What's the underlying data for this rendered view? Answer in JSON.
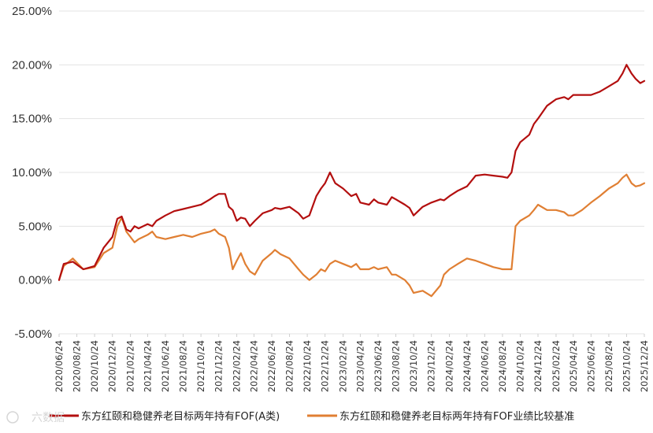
{
  "watermark": "六数据",
  "chart_data": {
    "type": "line",
    "ylim": [
      -0.05,
      0.25
    ],
    "yticks": [
      -0.05,
      0,
      0.05,
      0.1,
      0.15,
      0.2,
      0.25
    ],
    "ytick_labels": [
      "-5.00%",
      "0.00%",
      "5.00%",
      "10.00%",
      "15.00%",
      "20.00%",
      "25.00%"
    ],
    "xlim": [
      "2020-06-24",
      "2025-12-24"
    ],
    "xticks": [
      "2020-06-24",
      "2020-08-24",
      "2020-10-24",
      "2020-12-24",
      "2021-02-24",
      "2021-04-24",
      "2021-06-24",
      "2021-08-24",
      "2021-10-24",
      "2021-12-24",
      "2022-02-24",
      "2022-04-24",
      "2022-06-24",
      "2022-08-24",
      "2022-10-24",
      "2022-12-24",
      "2023-02-24",
      "2023-04-24",
      "2023-06-24",
      "2023-08-24",
      "2023-10-24",
      "2023-12-24",
      "2024-02-24",
      "2024-04-24",
      "2024-06-24",
      "2024-08-24",
      "2024-10-24",
      "2024-12-24",
      "2025-02-24",
      "2025-04-24",
      "2025-06-24",
      "2025-08-24",
      "2025-10-24",
      "2025-12-24"
    ],
    "xtick_labels": [
      "2020/06/24",
      "2020/08/24",
      "2020/10/24",
      "2020/12/24",
      "2021/02/24",
      "2021/04/24",
      "2021/06/24",
      "2021/08/24",
      "2021/10/24",
      "2021/12/24",
      "2022/02/24",
      "2022/04/24",
      "2022/06/24",
      "2022/08/24",
      "2022/10/24",
      "2022/12/24",
      "2023/02/24",
      "2023/04/24",
      "2023/06/24",
      "2023/08/24",
      "2023/10/24",
      "2023/12/24",
      "2024/02/24",
      "2024/04/24",
      "2024/06/24",
      "2024/08/24",
      "2024/10/24",
      "2024/12/24",
      "2025/02/24",
      "2025/04/24",
      "2025/06/24",
      "2025/08/24",
      "2025/10/24",
      "2025/12/24"
    ],
    "grid": true,
    "legend_position": "bottom",
    "series": [
      {
        "name": "东方红颐和稳健养老目标两年持有FOF(A类)",
        "color": "#b30f0f",
        "x": [
          "2020-06-24",
          "2020-07-10",
          "2020-08-10",
          "2020-09-15",
          "2020-10-24",
          "2020-11-24",
          "2020-12-24",
          "2021-01-10",
          "2021-01-25",
          "2021-02-10",
          "2021-02-24",
          "2021-03-10",
          "2021-03-24",
          "2021-04-24",
          "2021-05-10",
          "2021-05-24",
          "2021-06-24",
          "2021-07-24",
          "2021-08-24",
          "2021-09-24",
          "2021-10-24",
          "2021-11-24",
          "2021-12-10",
          "2021-12-24",
          "2022-01-15",
          "2022-01-28",
          "2022-02-10",
          "2022-02-24",
          "2022-03-10",
          "2022-03-25",
          "2022-04-10",
          "2022-04-27",
          "2022-05-24",
          "2022-06-24",
          "2022-07-05",
          "2022-07-24",
          "2022-08-24",
          "2022-09-24",
          "2022-10-10",
          "2022-10-31",
          "2022-11-24",
          "2022-12-10",
          "2022-12-24",
          "2023-01-10",
          "2023-01-28",
          "2023-02-24",
          "2023-03-24",
          "2023-04-10",
          "2023-04-24",
          "2023-05-24",
          "2023-06-10",
          "2023-06-24",
          "2023-07-24",
          "2023-08-10",
          "2023-08-24",
          "2023-09-24",
          "2023-10-10",
          "2023-10-24",
          "2023-11-24",
          "2023-12-24",
          "2024-01-24",
          "2024-02-05",
          "2024-02-24",
          "2024-03-24",
          "2024-04-24",
          "2024-05-24",
          "2024-06-24",
          "2024-07-24",
          "2024-08-24",
          "2024-09-10",
          "2024-09-24",
          "2024-10-08",
          "2024-10-24",
          "2024-11-24",
          "2024-12-10",
          "2024-12-24",
          "2025-01-24",
          "2025-02-24",
          "2025-03-24",
          "2025-04-07",
          "2025-04-24",
          "2025-05-24",
          "2025-06-24",
          "2025-07-24",
          "2025-08-24",
          "2025-09-24",
          "2025-10-10",
          "2025-10-24",
          "2025-11-10",
          "2025-11-24",
          "2025-12-10",
          "2025-12-24"
        ],
        "y": [
          0.0,
          0.015,
          0.017,
          0.01,
          0.013,
          0.03,
          0.04,
          0.057,
          0.059,
          0.047,
          0.045,
          0.05,
          0.048,
          0.052,
          0.05,
          0.055,
          0.06,
          0.064,
          0.066,
          0.068,
          0.07,
          0.075,
          0.078,
          0.08,
          0.08,
          0.068,
          0.065,
          0.055,
          0.058,
          0.057,
          0.05,
          0.055,
          0.062,
          0.065,
          0.067,
          0.066,
          0.068,
          0.062,
          0.057,
          0.06,
          0.078,
          0.085,
          0.09,
          0.1,
          0.09,
          0.085,
          0.078,
          0.08,
          0.072,
          0.07,
          0.075,
          0.072,
          0.07,
          0.077,
          0.075,
          0.07,
          0.067,
          0.06,
          0.068,
          0.072,
          0.075,
          0.074,
          0.078,
          0.083,
          0.087,
          0.097,
          0.098,
          0.097,
          0.096,
          0.095,
          0.1,
          0.12,
          0.128,
          0.135,
          0.145,
          0.15,
          0.162,
          0.168,
          0.17,
          0.168,
          0.172,
          0.172,
          0.172,
          0.175,
          0.18,
          0.185,
          0.192,
          0.2,
          0.192,
          0.187,
          0.183,
          0.185
        ]
      },
      {
        "name": "东方红颐和稳健养老目标两年持有FOF业绩比较基准",
        "color": "#e07f33",
        "x": [
          "2020-06-24",
          "2020-07-10",
          "2020-08-10",
          "2020-09-15",
          "2020-10-24",
          "2020-11-24",
          "2020-12-24",
          "2021-01-10",
          "2021-01-25",
          "2021-02-10",
          "2021-02-24",
          "2021-03-10",
          "2021-03-24",
          "2021-04-24",
          "2021-05-10",
          "2021-05-24",
          "2021-06-24",
          "2021-07-24",
          "2021-08-24",
          "2021-09-24",
          "2021-10-24",
          "2021-11-24",
          "2021-12-10",
          "2021-12-24",
          "2022-01-15",
          "2022-01-28",
          "2022-02-10",
          "2022-02-24",
          "2022-03-10",
          "2022-03-25",
          "2022-04-10",
          "2022-04-27",
          "2022-05-24",
          "2022-06-24",
          "2022-07-05",
          "2022-07-24",
          "2022-08-24",
          "2022-09-24",
          "2022-10-10",
          "2022-10-31",
          "2022-11-24",
          "2022-12-10",
          "2022-12-24",
          "2023-01-10",
          "2023-01-28",
          "2023-02-24",
          "2023-03-24",
          "2023-04-10",
          "2023-04-24",
          "2023-05-24",
          "2023-06-10",
          "2023-06-24",
          "2023-07-24",
          "2023-08-10",
          "2023-08-24",
          "2023-09-24",
          "2023-10-10",
          "2023-10-24",
          "2023-11-24",
          "2023-12-24",
          "2024-01-24",
          "2024-02-05",
          "2024-02-24",
          "2024-03-24",
          "2024-04-24",
          "2024-05-24",
          "2024-06-24",
          "2024-07-24",
          "2024-08-24",
          "2024-09-10",
          "2024-09-24",
          "2024-10-08",
          "2024-10-24",
          "2024-11-24",
          "2024-12-10",
          "2024-12-24",
          "2025-01-24",
          "2025-02-24",
          "2025-03-24",
          "2025-04-07",
          "2025-04-24",
          "2025-05-24",
          "2025-06-24",
          "2025-07-24",
          "2025-08-24",
          "2025-09-24",
          "2025-10-10",
          "2025-10-24",
          "2025-11-10",
          "2025-11-24",
          "2025-12-10",
          "2025-12-24"
        ],
        "y": [
          0.0,
          0.013,
          0.02,
          0.01,
          0.012,
          0.025,
          0.03,
          0.05,
          0.058,
          0.045,
          0.04,
          0.035,
          0.038,
          0.042,
          0.045,
          0.04,
          0.038,
          0.04,
          0.042,
          0.04,
          0.043,
          0.045,
          0.047,
          0.043,
          0.04,
          0.03,
          0.01,
          0.018,
          0.025,
          0.015,
          0.008,
          0.005,
          0.018,
          0.025,
          0.028,
          0.024,
          0.02,
          0.01,
          0.005,
          0.0,
          0.005,
          0.01,
          0.008,
          0.015,
          0.018,
          0.015,
          0.012,
          0.015,
          0.01,
          0.01,
          0.012,
          0.01,
          0.012,
          0.005,
          0.005,
          0.0,
          -0.005,
          -0.012,
          -0.01,
          -0.015,
          -0.005,
          0.005,
          0.01,
          0.015,
          0.02,
          0.018,
          0.015,
          0.012,
          0.01,
          0.01,
          0.01,
          0.05,
          0.055,
          0.06,
          0.065,
          0.07,
          0.065,
          0.065,
          0.063,
          0.06,
          0.06,
          0.065,
          0.072,
          0.078,
          0.085,
          0.09,
          0.095,
          0.098,
          0.09,
          0.087,
          0.088,
          0.09
        ]
      }
    ]
  }
}
